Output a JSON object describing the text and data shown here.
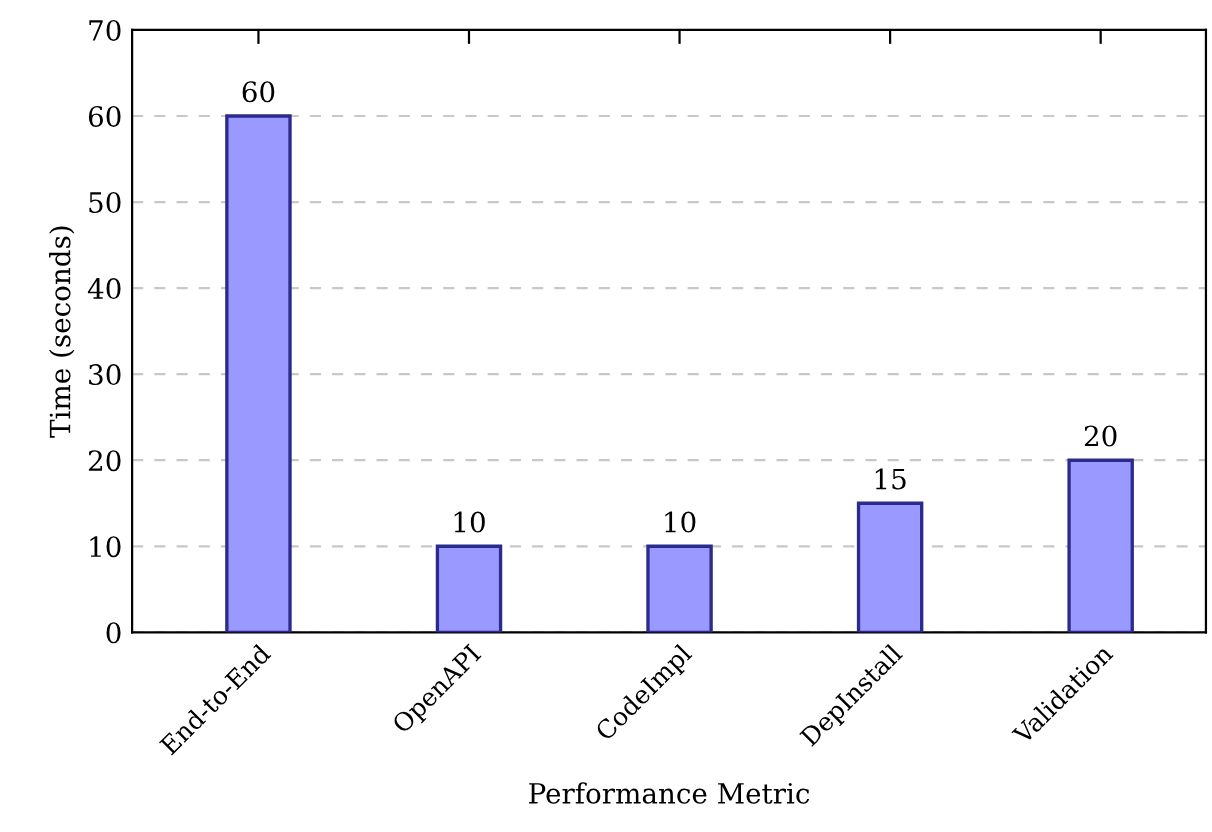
{
  "chart_data": {
    "type": "bar",
    "xlabel": "Performance Metric",
    "ylabel": "Time (seconds)",
    "categories": [
      "End-to-End",
      "OpenAPI",
      "CodeImpl",
      "DepInstall",
      "Validation"
    ],
    "values": [
      60,
      10,
      10,
      15,
      20
    ],
    "color": "#9999ff",
    "ylim": [
      0,
      70
    ],
    "yticks": [
      0,
      10,
      20,
      30,
      40,
      50,
      60,
      70
    ],
    "grid": "y",
    "data_labels": true
  }
}
